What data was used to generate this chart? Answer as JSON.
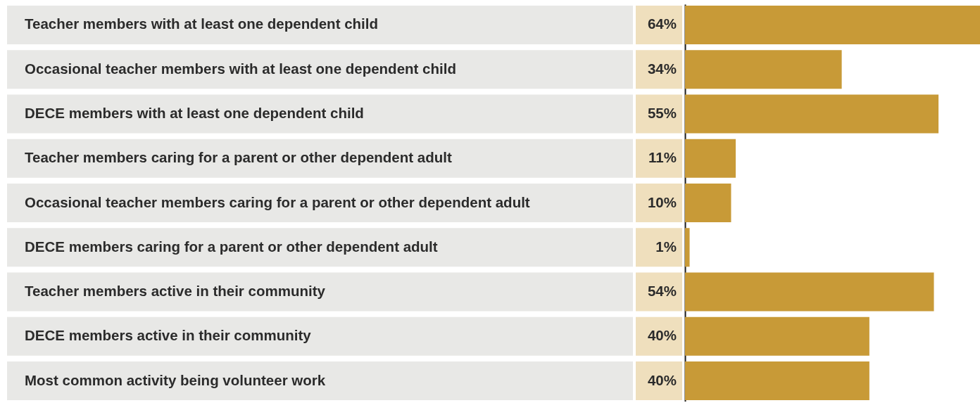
{
  "chart_data": {
    "type": "bar",
    "orientation": "horizontal",
    "categories": [
      "Teacher members with at least one dependent child",
      "Occasional teacher members with at least one dependent child",
      "DECE members with at least one dependent child",
      "Teacher members caring for a parent or other dependent adult",
      "Occasional teacher members caring for a parent or other dependent adult",
      "DECE members caring for a parent or other dependent adult",
      "Teacher members active in their community",
      "DECE members active in their community",
      "Most common activity being volunteer work"
    ],
    "values": [
      64,
      34,
      55,
      11,
      10,
      1,
      54,
      40,
      40
    ],
    "value_labels": [
      "64%",
      "34%",
      "55%",
      "11%",
      "10%",
      "1%",
      "54%",
      "40%",
      "40%"
    ],
    "color": "#c89a37"
  }
}
